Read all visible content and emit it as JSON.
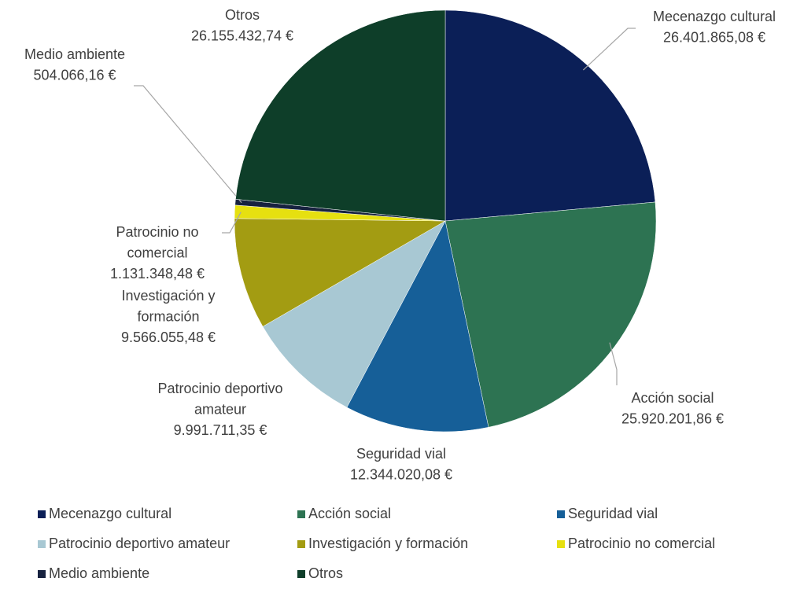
{
  "chart_data": {
    "type": "pie",
    "categories": [
      "Mecenazgo cultural",
      "Acción social",
      "Seguridad vial",
      "Patrocinio deportivo amateur",
      "Investigación y formación",
      "Patrocinio no comercial",
      "Medio ambiente",
      "Otros"
    ],
    "values": [
      26401865.08,
      25920201.86,
      12344020.08,
      9991711.35,
      9566055.48,
      1131348.48,
      504066.16,
      26155432.74
    ],
    "value_labels": [
      "26.401.865,08 €",
      "25.920.201,86 €",
      "12.344.020,08 €",
      "9.991.711,35 €",
      "9.566.055,48 €",
      "1.131.348,48 €",
      "504.066,16 €",
      "26.155.432,74 €"
    ],
    "colors": [
      "#0b1f57",
      "#2d7352",
      "#165f98",
      "#a8c8d3",
      "#a39c12",
      "#e6e010",
      "#17223f",
      "#0e3e29"
    ],
    "legend": "bottom"
  }
}
